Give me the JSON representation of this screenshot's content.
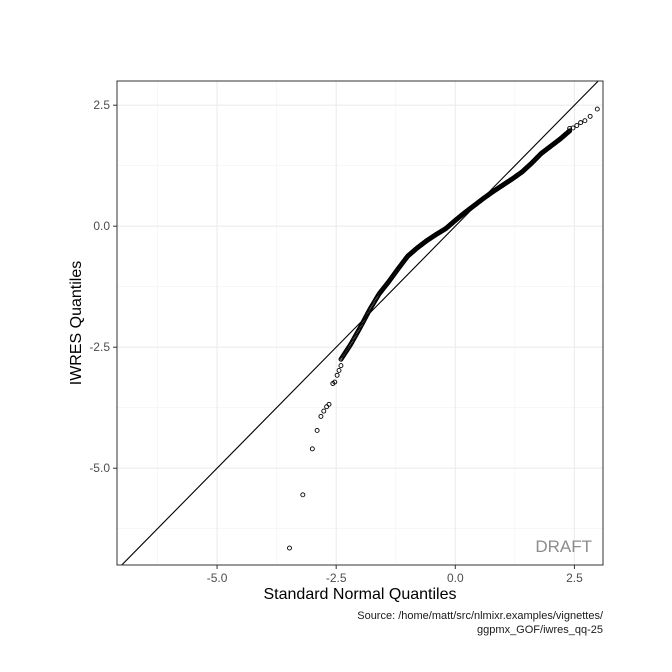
{
  "chart_data": {
    "type": "scatter",
    "title": "",
    "xlabel": "Standard Normal Quantiles",
    "ylabel": "IWRES Quantiles",
    "xlim": [
      -7.1,
      3.1
    ],
    "ylim": [
      -7.0,
      3.0
    ],
    "xticks": [
      -5.0,
      -2.5,
      0.0,
      2.5
    ],
    "xtick_labels": [
      "-5.0",
      "-2.5",
      "0.0",
      "2.5"
    ],
    "yticks": [
      2.5,
      0.0,
      -2.5,
      -5.0
    ],
    "ytick_labels": [
      "2.5",
      "0.0",
      "-2.5",
      "-5.0"
    ],
    "grid": true,
    "reference_line": {
      "intercept": 0,
      "slope": 1
    },
    "watermark": "DRAFT",
    "caption_lines": [
      "Source: /home/matt/src/nlmixr.examples/vignettes/",
      "ggpmx_GOF/iwres_qq-25"
    ],
    "tail_points": [
      {
        "x": -3.48,
        "y": -6.65
      },
      {
        "x": -3.2,
        "y": -5.55
      },
      {
        "x": -3.0,
        "y": -4.6
      },
      {
        "x": -2.9,
        "y": -4.22
      },
      {
        "x": -2.82,
        "y": -3.93
      },
      {
        "x": -2.76,
        "y": -3.82
      },
      {
        "x": -2.7,
        "y": -3.73
      },
      {
        "x": -2.65,
        "y": -3.68
      },
      {
        "x": -2.57,
        "y": -3.25
      },
      {
        "x": -2.53,
        "y": -3.22
      },
      {
        "x": -2.48,
        "y": -3.08
      },
      {
        "x": -2.44,
        "y": -2.98
      },
      {
        "x": -2.4,
        "y": -2.88
      },
      {
        "x": 2.4,
        "y": 2.02
      },
      {
        "x": 2.47,
        "y": 2.03
      },
      {
        "x": 2.55,
        "y": 2.08
      },
      {
        "x": 2.63,
        "y": 2.14
      },
      {
        "x": 2.72,
        "y": 2.18
      },
      {
        "x": 2.83,
        "y": 2.27
      },
      {
        "x": 2.98,
        "y": 2.42
      }
    ],
    "quantile_curve": [
      {
        "x": -2.4,
        "y": -2.75
      },
      {
        "x": -2.2,
        "y": -2.45
      },
      {
        "x": -2.0,
        "y": -2.1
      },
      {
        "x": -1.8,
        "y": -1.73
      },
      {
        "x": -1.6,
        "y": -1.4
      },
      {
        "x": -1.4,
        "y": -1.15
      },
      {
        "x": -1.2,
        "y": -0.88
      },
      {
        "x": -1.0,
        "y": -0.62
      },
      {
        "x": -0.8,
        "y": -0.45
      },
      {
        "x": -0.6,
        "y": -0.3
      },
      {
        "x": -0.4,
        "y": -0.17
      },
      {
        "x": -0.2,
        "y": -0.05
      },
      {
        "x": 0.0,
        "y": 0.12
      },
      {
        "x": 0.2,
        "y": 0.28
      },
      {
        "x": 0.4,
        "y": 0.43
      },
      {
        "x": 0.6,
        "y": 0.58
      },
      {
        "x": 0.8,
        "y": 0.72
      },
      {
        "x": 1.0,
        "y": 0.85
      },
      {
        "x": 1.2,
        "y": 0.98
      },
      {
        "x": 1.4,
        "y": 1.12
      },
      {
        "x": 1.6,
        "y": 1.3
      },
      {
        "x": 1.8,
        "y": 1.5
      },
      {
        "x": 2.0,
        "y": 1.65
      },
      {
        "x": 2.2,
        "y": 1.8
      },
      {
        "x": 2.4,
        "y": 1.97
      }
    ]
  }
}
